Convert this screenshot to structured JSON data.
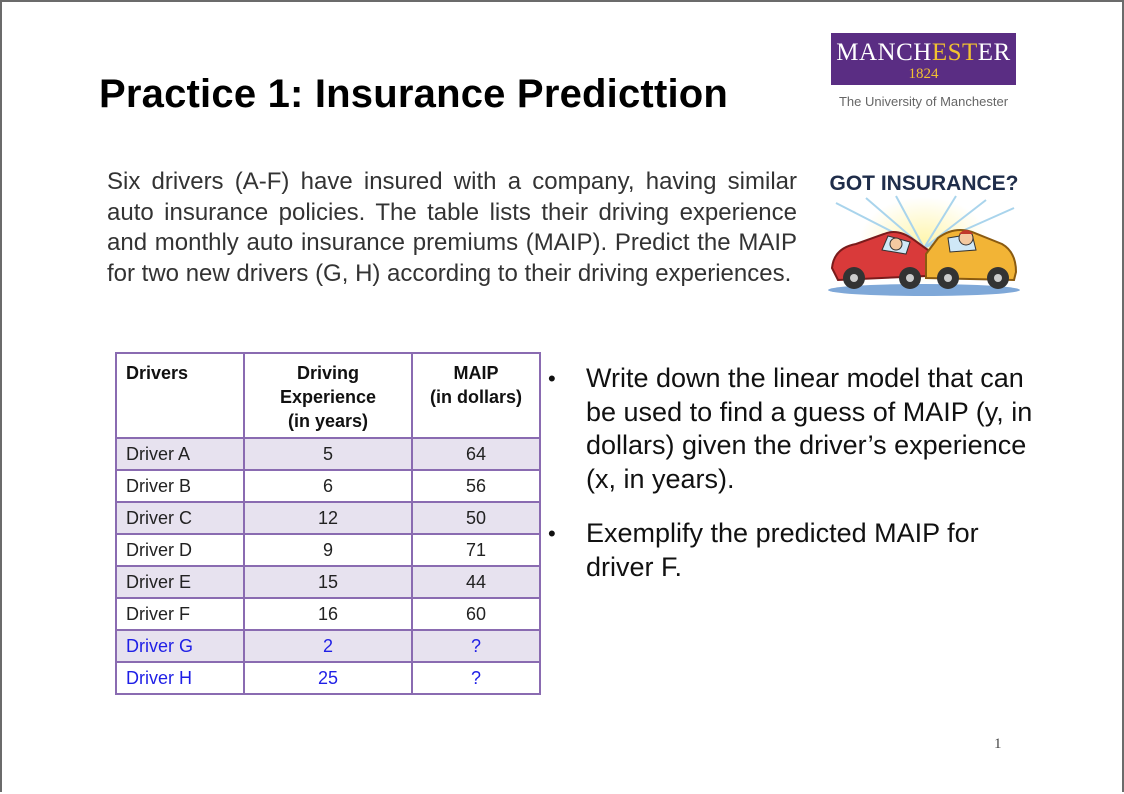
{
  "slide": {
    "title": "Practice 1: Insurance Predicttion",
    "intro": "Six drivers (A-F) have insured with a company, having similar auto insurance policies. The table lists their driving experience and monthly auto insurance premiums (MAIP). Predict the MAIP for two new drivers (G, H) according to their driving experiences.",
    "page_number": "1"
  },
  "logo": {
    "part1": "MANCH",
    "part2": "EST",
    "part3": "ER",
    "year": "1824",
    "subtitle": "The University of Manchester"
  },
  "image": {
    "caption": "GOT INSURANCE?"
  },
  "table": {
    "headers": {
      "drivers": "Drivers",
      "experience_l1": "Driving",
      "experience_l2": "Experience",
      "experience_l3": "(in years)",
      "maip_l1": "MAIP",
      "maip_l2": "(in dollars)"
    },
    "rows": [
      {
        "driver": "Driver A",
        "experience": "5",
        "maip": "64"
      },
      {
        "driver": "Driver B",
        "experience": "6",
        "maip": "56"
      },
      {
        "driver": "Driver C",
        "experience": "12",
        "maip": "50"
      },
      {
        "driver": "Driver D",
        "experience": "9",
        "maip": "71"
      },
      {
        "driver": "Driver E",
        "experience": "15",
        "maip": "44"
      },
      {
        "driver": "Driver F",
        "experience": "16",
        "maip": "60"
      },
      {
        "driver": "Driver G",
        "experience": "2",
        "maip": "?"
      },
      {
        "driver": "Driver H",
        "experience": "25",
        "maip": "?"
      }
    ]
  },
  "bullets": {
    "symbol": "•",
    "item1": "Write down the linear model that can be used to find a guess of MAIP (y, in dollars) given the driver’s experience (x, in years).",
    "item2": "Exemplify the predicted MAIP for driver F."
  },
  "colors": {
    "logo_purple": "#5a2d83",
    "logo_gold": "#f2c230",
    "table_border": "#8a6bb1",
    "row_shade": "#e7e2ef",
    "new_driver_blue": "#1f1fe6"
  }
}
